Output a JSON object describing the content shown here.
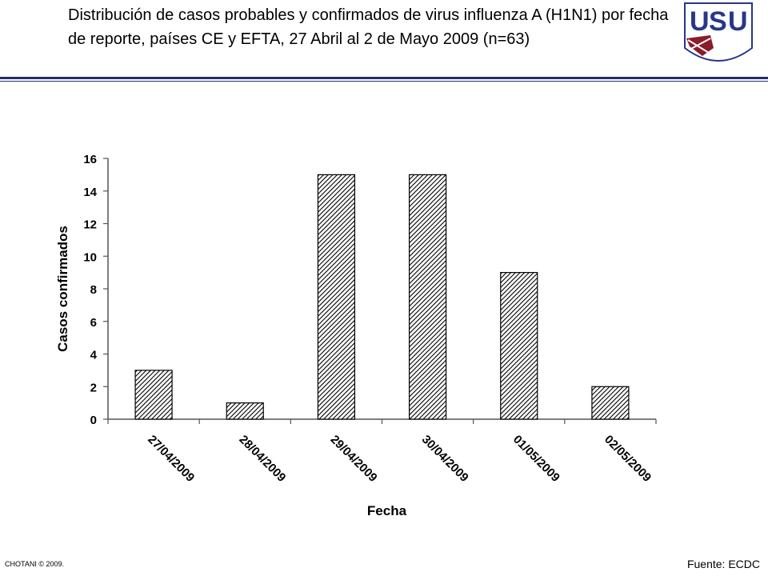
{
  "slide": {
    "title": "Distribución de casos probables y confirmados de virus influenza A (H1N1) por fecha de reporte, países CE y EFTA, 27 Abril al 2 de Mayo 2009 (n=63)",
    "footer_left": "CHOTANI © 2009.",
    "footer_right": "Fuente: ECDC",
    "logo_text": "USU",
    "accent_color": "#1f2f6b"
  },
  "chart_data": {
    "type": "bar",
    "title": "",
    "xlabel": "Fecha",
    "ylabel": "Casos confirmados",
    "categories": [
      "27/04/2009",
      "28/04/2009",
      "29/04/2009",
      "30/04/2009",
      "01/05/2009",
      "02/05/2009"
    ],
    "values": [
      3,
      1,
      15,
      15,
      9,
      2
    ],
    "ylim": [
      0,
      16
    ],
    "yticks": [
      0,
      2,
      4,
      6,
      8,
      10,
      12,
      14,
      16
    ],
    "grid": false,
    "legend": "none",
    "bar_fill": "diagonal-hatch"
  }
}
